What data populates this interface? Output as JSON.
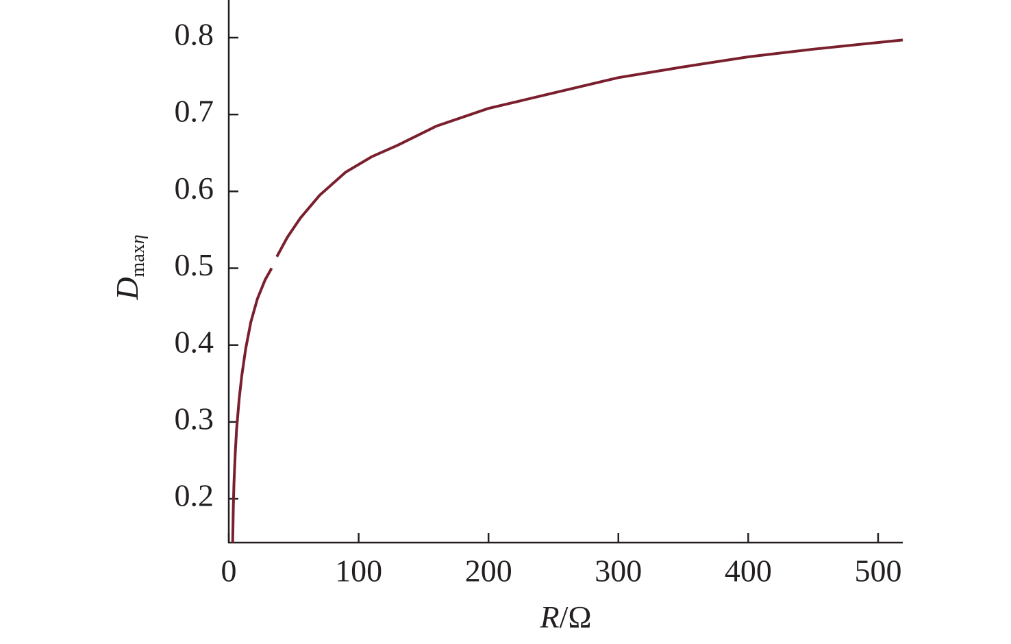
{
  "chart_data": {
    "type": "line",
    "xlabel": {
      "italic": "R",
      "rest": "/Ω"
    },
    "ylabel": {
      "base": "D",
      "subscript": [
        "max",
        "η"
      ]
    },
    "x": [
      3,
      3.5,
      4,
      5,
      6,
      8,
      10,
      13,
      17,
      22,
      28,
      33,
      35,
      37,
      45,
      55,
      70,
      90,
      110,
      130,
      160,
      200,
      250,
      300,
      350,
      400,
      450,
      519
    ],
    "series": [
      {
        "color": "#7a1f2e",
        "values": [
          0.143,
          0.19,
          0.22,
          0.26,
          0.29,
          0.33,
          0.36,
          0.395,
          0.43,
          0.46,
          0.485,
          0.5,
          null,
          0.515,
          0.54,
          0.565,
          0.595,
          0.625,
          0.645,
          0.66,
          0.685,
          0.708,
          0.728,
          0.748,
          0.762,
          0.775,
          0.785,
          0.797
        ]
      }
    ],
    "xlim": [
      0,
      519
    ],
    "ylim": [
      0.143,
      0.849
    ],
    "xticks": [
      0,
      100,
      200,
      300,
      400,
      500
    ],
    "yticks": [
      0.2,
      0.3,
      0.4,
      0.5,
      0.6,
      0.7,
      0.8
    ],
    "grid": false
  }
}
